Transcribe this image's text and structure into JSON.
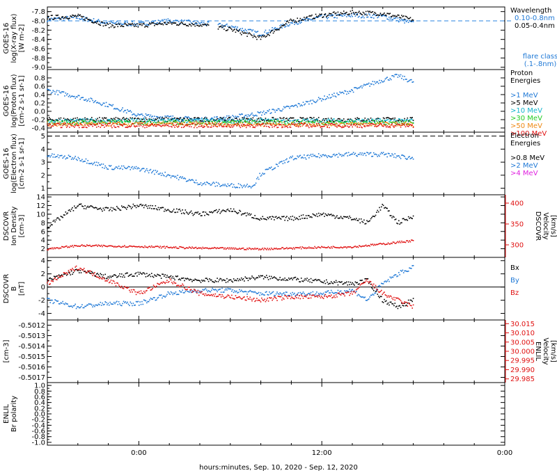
{
  "colors": {
    "black": "#000000",
    "blue": "#1e78d6",
    "cyan": "#12b4cc",
    "green": "#22cc22",
    "orange": "#ee8811",
    "red": "#e01010",
    "magenta": "#e020e0",
    "dash_blue": "#2a86e0"
  },
  "chart_data": {
    "type": "scatter",
    "xlabel": "hours:minutes, Sep. 10, 2020 - Sep. 12, 2020",
    "x_ticks": [
      "0:00",
      "12:00",
      "0:00"
    ],
    "x_range_hours": [
      -6,
      24
    ],
    "data_end_hour": 18.2,
    "panels": [
      {
        "id": "xray",
        "ylabel": [
          "GOES-16",
          "log(X-ray flux)",
          "[W m-2]"
        ],
        "yticks": [
          "-7.8",
          "-8.0",
          "-8.2",
          "-8.4",
          "-8.6",
          "-8.8",
          "-9.0"
        ],
        "ylim": [
          -9.05,
          -7.7
        ],
        "legend_title": "Wavelength",
        "legend": [
          {
            "label": "0.10-0.8nm",
            "color": "blue"
          },
          {
            "label": "0.05-0.4nm",
            "color": "black"
          }
        ],
        "annotation": [
          "flare class",
          "(.1-.8nm)"
        ],
        "flare_class_level": -8.0,
        "series": [
          {
            "name": "0.10-0.8nm",
            "color": "blue",
            "x": [
              -6,
              -4,
              -2,
              0,
              2,
              4,
              6,
              8,
              10,
              12,
              14,
              16,
              18
            ],
            "y": [
              -7.97,
              -7.93,
              -8.05,
              -8.07,
              -8.0,
              -8.05,
              -8.12,
              -8.28,
              -8.05,
              -7.92,
              -7.88,
              -7.9,
              -8.05
            ]
          },
          {
            "name": "0.05-0.4nm",
            "color": "black",
            "x": [
              -6,
              -4,
              -2,
              0,
              2,
              4,
              6,
              8,
              10,
              12,
              14,
              16,
              18
            ],
            "y": [
              -7.93,
              -7.9,
              -8.1,
              -8.1,
              -8.05,
              -8.08,
              -8.18,
              -8.38,
              -8.0,
              -7.88,
              -7.82,
              -7.84,
              -7.98
            ]
          }
        ]
      },
      {
        "id": "proton",
        "ylabel": [
          "GOES-16",
          "log(Proton flux)",
          "[cm-2 s-1 sr-1]"
        ],
        "yticks": [
          "0.8",
          "0.6",
          "0.4",
          "0.2",
          "0.0",
          "-0.2",
          "-0.4"
        ],
        "ylim": [
          -0.5,
          1.0
        ],
        "legend_title": [
          "Proton",
          "Energies"
        ],
        "legend": [
          {
            "label": ">1 MeV",
            "color": "blue"
          },
          {
            "label": ">5 MeV",
            "color": "black"
          },
          {
            "label": ">10 MeV",
            "color": "cyan"
          },
          {
            "label": ">30 MeV",
            "color": "green"
          },
          {
            "label": ">50 MeV",
            "color": "orange"
          },
          {
            "label": ">100 MeV",
            "color": "red"
          }
        ],
        "series": [
          {
            "name": ">1 MeV",
            "color": "blue",
            "x": [
              -6,
              -4,
              -2,
              0,
              2,
              4,
              6,
              8,
              10,
              12,
              14,
              16,
              17,
              18
            ],
            "y": [
              0.5,
              0.35,
              0.15,
              -0.1,
              -0.15,
              -0.2,
              -0.15,
              -0.05,
              0.1,
              0.3,
              0.5,
              0.75,
              0.85,
              0.7
            ]
          },
          {
            "name": ">5 MeV",
            "color": "black",
            "x": [
              -6,
              18
            ],
            "y": [
              -0.2,
              -0.2
            ]
          },
          {
            "name": ">10 MeV",
            "color": "cyan",
            "x": [
              -6,
              18
            ],
            "y": [
              -0.23,
              -0.23
            ]
          },
          {
            "name": ">30 MeV",
            "color": "green",
            "x": [
              -6,
              18
            ],
            "y": [
              -0.27,
              -0.27
            ]
          },
          {
            "name": ">50 MeV",
            "color": "orange",
            "x": [
              -6,
              18
            ],
            "y": [
              -0.31,
              -0.31
            ]
          },
          {
            "name": ">100 MeV",
            "color": "red",
            "x": [
              -6,
              18
            ],
            "y": [
              -0.34,
              -0.34
            ]
          }
        ]
      },
      {
        "id": "electron",
        "ylabel": [
          "GOES-16",
          "log(Electron flux)",
          "[cm-2 s-1 sr-1]"
        ],
        "yticks": [
          "5",
          "4",
          "3",
          "2",
          "1"
        ],
        "ylim": [
          0.5,
          5.3
        ],
        "legend_title": [
          "Electron",
          "Energies"
        ],
        "legend": [
          {
            "label": ">0.8 MeV",
            "color": "black"
          },
          {
            "label": ">2 MeV",
            "color": "blue"
          },
          {
            "label": ">4 MeV",
            "color": "magenta"
          }
        ],
        "threshold_level": 5.0,
        "series": [
          {
            "name": ">2 MeV",
            "color": "blue",
            "x": [
              -6,
              -4,
              -2,
              0,
              2,
              4,
              6,
              7.5,
              8,
              10,
              12,
              14,
              16,
              18
            ],
            "y": [
              3.5,
              3.3,
              2.6,
              2.5,
              2.0,
              1.4,
              1.2,
              1.2,
              2.1,
              3.3,
              3.5,
              3.6,
              3.6,
              3.3
            ]
          }
        ]
      },
      {
        "id": "dscovr_density",
        "ylabel": [
          "DSCOVR",
          "Ion Density",
          "[cm-3]"
        ],
        "yticks": [
          "14",
          "12",
          "10",
          "8",
          "6",
          "4",
          "2"
        ],
        "ylim": [
          0,
          14.5
        ],
        "right_ylabel": [
          "DSCOVR",
          "Velocity",
          "[km/s]"
        ],
        "right_yticks": [
          "400",
          "350",
          "300"
        ],
        "right_ylim": [
          270,
          420
        ],
        "series": [
          {
            "name": "Ion Density",
            "color": "black",
            "axis": "left",
            "x": [
              -6,
              -4,
              -2,
              0,
              2,
              4,
              6,
              8,
              10,
              12,
              14,
              15,
              16,
              17,
              18
            ],
            "y": [
              7,
              12,
              11,
              12,
              11,
              10,
              11,
              9,
              9,
              10,
              9,
              8,
              12,
              8,
              9.5
            ]
          },
          {
            "name": "Velocity",
            "color": "red",
            "axis": "right",
            "x": [
              -6,
              -4,
              -2,
              0,
              2,
              4,
              6,
              8,
              10,
              12,
              14,
              16,
              18
            ],
            "y": [
              290,
              298,
              297,
              296,
              294,
              292,
              291,
              290,
              292,
              294,
              295,
              302,
              310
            ]
          }
        ]
      },
      {
        "id": "dscovr_b",
        "ylabel": [
          "DSCOVR",
          "B",
          "[nT]"
        ],
        "yticks": [
          "4",
          "2",
          "0",
          "-2",
          "-4"
        ],
        "ylim": [
          -5,
          4.5
        ],
        "zero_line": true,
        "legend": [
          {
            "label": "Bx",
            "color": "black"
          },
          {
            "label": "By",
            "color": "blue"
          },
          {
            "label": "Bz",
            "color": "red"
          }
        ],
        "series": [
          {
            "name": "Bx",
            "color": "black",
            "x": [
              -6,
              -4,
              -2,
              0,
              2,
              4,
              6,
              8,
              10,
              12,
              14,
              15,
              16,
              17,
              18
            ],
            "y": [
              1,
              2.5,
              1.5,
              2,
              1.5,
              1,
              1,
              1.5,
              1.2,
              0.8,
              0.5,
              1,
              -2,
              -3,
              -2
            ]
          },
          {
            "name": "By",
            "color": "blue",
            "x": [
              -6,
              -4,
              -2,
              0,
              2,
              4,
              6,
              8,
              10,
              12,
              14,
              15,
              16,
              17,
              18
            ],
            "y": [
              -2,
              -3,
              -2.5,
              -2.5,
              -1,
              -0.5,
              -0.5,
              -1,
              -1,
              -1,
              -0.5,
              -2,
              0.5,
              2,
              3
            ]
          },
          {
            "name": "Bz",
            "color": "red",
            "x": [
              -6,
              -4,
              -2,
              0,
              2,
              4,
              6,
              8,
              10,
              12,
              14,
              15,
              16,
              17,
              18
            ],
            "y": [
              0.5,
              3,
              1,
              -1,
              1,
              -1,
              -1.5,
              -2,
              -1.5,
              -1.5,
              -1,
              1,
              -1,
              -2,
              -3
            ]
          }
        ]
      },
      {
        "id": "enlil_density",
        "ylabel": [
          "[cm-3]"
        ],
        "yticks": [
          "-0.5012",
          "-0.5013",
          "-0.5014",
          "-0.5015",
          "-0.5016",
          "-0.5017"
        ],
        "ylim": [
          -0.50175,
          -0.50115
        ],
        "right_ylabel": [
          "ENLIL",
          "Velocity",
          "[km/s]"
        ],
        "right_yticks": [
          "30.015",
          "30.010",
          "30.005",
          "30.000",
          "29.995",
          "29.990",
          "29.985"
        ],
        "right_ylim": [
          29.983,
          30.017
        ],
        "series": []
      },
      {
        "id": "enlil_polarity",
        "ylabel": [
          "ENLIL",
          "Br polarity"
        ],
        "yticks": [
          "1.0",
          "0.8",
          "0.6",
          "0.4",
          "0.2",
          "0.0",
          "-0.2",
          "-0.4",
          "-0.6",
          "-0.8",
          "-1.0"
        ],
        "ylim": [
          -1.1,
          1.1
        ],
        "series": []
      }
    ]
  }
}
